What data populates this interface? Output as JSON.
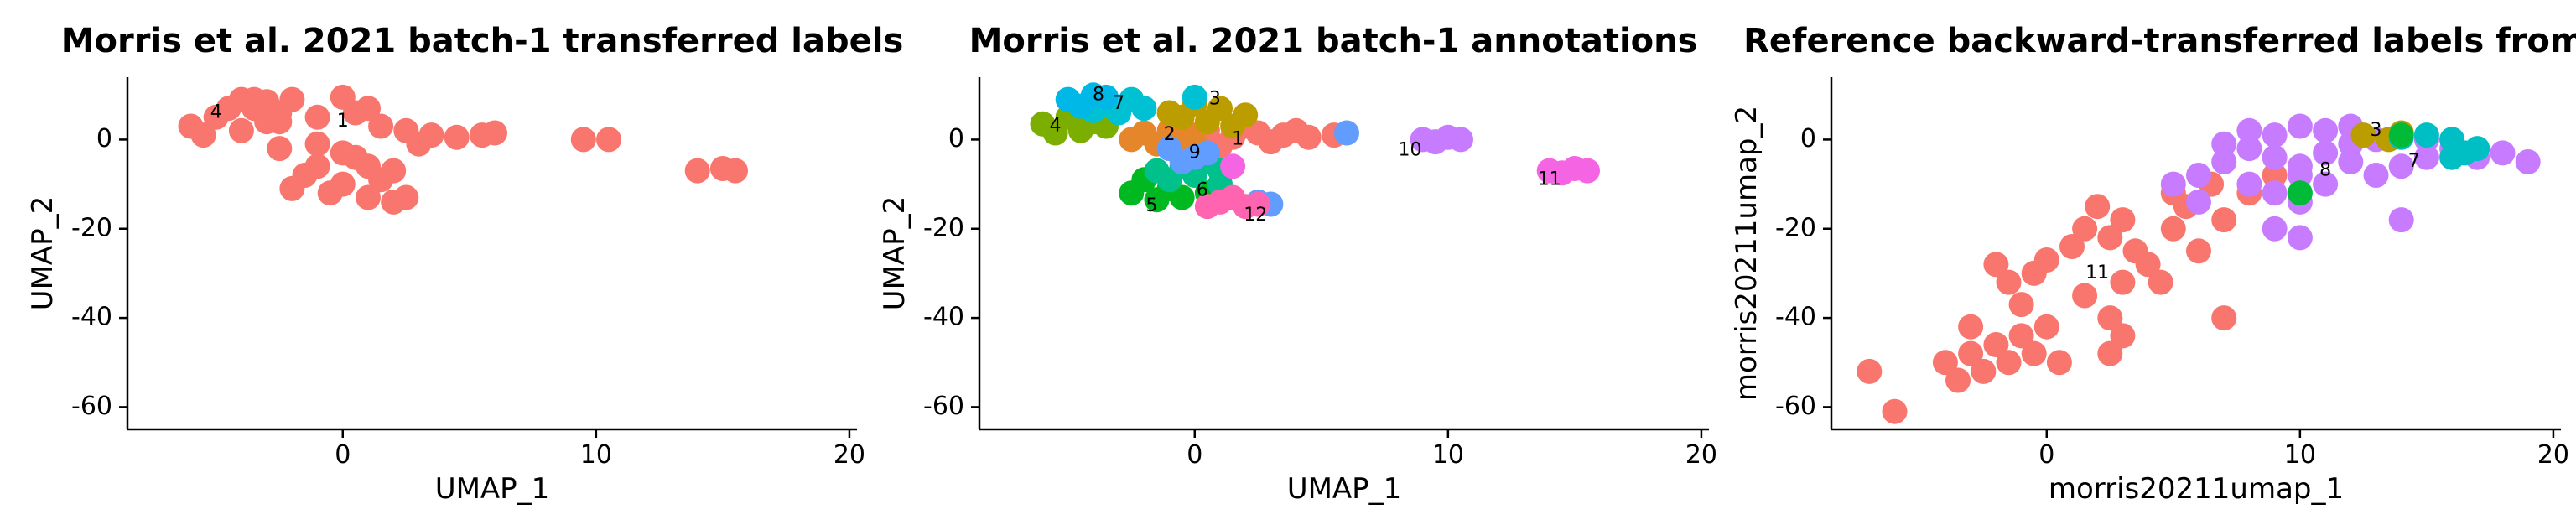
{
  "figure": {
    "background": "#ffffff"
  },
  "chart_data": [
    {
      "type": "scatter",
      "title": "Morris et al. 2021 batch-1 transferred labels",
      "xlabel": "UMAP_1",
      "ylabel": "UMAP_2",
      "xlim": [
        -8.5,
        20.3
      ],
      "ylim": [
        -65,
        14
      ],
      "xticks": [
        0,
        10,
        20
      ],
      "yticks": [
        0,
        -20,
        -40,
        -60
      ],
      "grid": false,
      "legend": "none",
      "clusters": [
        {
          "label": "1",
          "color": "#F8766D",
          "label_pos": [
            0,
            4
          ],
          "points": [
            [
              -2.5,
              4
            ],
            [
              -1,
              5
            ],
            [
              0.5,
              6
            ],
            [
              1.5,
              3
            ],
            [
              2.5,
              2
            ],
            [
              3.5,
              1
            ],
            [
              4.5,
              0.5
            ],
            [
              5.5,
              1
            ],
            [
              6,
              1.5
            ],
            [
              -1,
              -1
            ],
            [
              0,
              -3
            ],
            [
              1,
              -6
            ],
            [
              -1.5,
              -8
            ],
            [
              -2,
              -11
            ],
            [
              -0.5,
              -12
            ],
            [
              1,
              -13
            ],
            [
              2,
              -14
            ],
            [
              2.5,
              -13
            ],
            [
              0,
              -10
            ],
            [
              1.5,
              -9
            ],
            [
              9.5,
              0
            ],
            [
              10.5,
              0
            ],
            [
              14,
              -7
            ],
            [
              15,
              -6.5
            ],
            [
              15.5,
              -7
            ],
            [
              -3.5,
              7
            ],
            [
              -2,
              9
            ],
            [
              0,
              9.5
            ],
            [
              1,
              7
            ],
            [
              0.5,
              -4
            ],
            [
              -1,
              -6
            ],
            [
              2,
              -7
            ],
            [
              -2.5,
              -2
            ],
            [
              3,
              -1
            ]
          ]
        },
        {
          "label": "4",
          "color": "#F8766D",
          "label_pos": [
            -5,
            6
          ],
          "points": [
            [
              -6,
              3
            ],
            [
              -5,
              5
            ],
            [
              -4.5,
              7
            ],
            [
              -3.5,
              9
            ],
            [
              -5.5,
              1
            ],
            [
              -4,
              2
            ],
            [
              -3,
              4
            ],
            [
              -2.5,
              6
            ],
            [
              -4,
              9
            ],
            [
              -3,
              8.5
            ]
          ]
        }
      ]
    },
    {
      "type": "scatter",
      "title": "Morris et al. 2021 batch-1 annotations",
      "xlabel": "UMAP_1",
      "ylabel": "UMAP_2",
      "xlim": [
        -8.5,
        20.3
      ],
      "ylim": [
        -65,
        14
      ],
      "xticks": [
        0,
        10,
        20
      ],
      "yticks": [
        0,
        -20,
        -40,
        -60
      ],
      "grid": false,
      "legend": "none",
      "clusters": [
        {
          "label": "1",
          "color": "#F8766D",
          "label_pos": [
            1.7,
            0
          ],
          "points": [
            [
              0.5,
              2
            ],
            [
              1.5,
              0.5
            ],
            [
              2.5,
              1.5
            ],
            [
              3.5,
              1
            ],
            [
              4.5,
              0.5
            ],
            [
              5.5,
              1
            ],
            [
              2,
              3
            ],
            [
              3,
              -0.5
            ],
            [
              1,
              -1.5
            ],
            [
              4,
              2
            ]
          ]
        },
        {
          "label": "2",
          "color": "#E6862B",
          "label_pos": [
            -1,
            1
          ],
          "points": [
            [
              -2,
              1.5
            ],
            [
              -1,
              2
            ],
            [
              -0.5,
              0.5
            ],
            [
              -1.5,
              -1
            ],
            [
              0,
              1
            ],
            [
              -2.5,
              0
            ]
          ]
        },
        {
          "label": "3",
          "color": "#BB9D00",
          "label_pos": [
            0.8,
            9
          ],
          "points": [
            [
              0,
              8
            ],
            [
              1,
              7
            ],
            [
              2,
              5.5
            ],
            [
              -0.5,
              5
            ],
            [
              0.5,
              4
            ],
            [
              1.5,
              3
            ],
            [
              -1,
              6
            ]
          ]
        },
        {
          "label": "4",
          "color": "#7CAE00",
          "label_pos": [
            -5.5,
            3
          ],
          "points": [
            [
              -6,
              3.5
            ],
            [
              -5,
              5
            ],
            [
              -4.5,
              2
            ],
            [
              -4,
              4
            ],
            [
              -5.5,
              1.5
            ],
            [
              -3.5,
              3
            ]
          ]
        },
        {
          "label": "5",
          "color": "#00B81F",
          "label_pos": [
            -1.7,
            -15
          ],
          "points": [
            [
              -2.5,
              -12
            ],
            [
              -1.5,
              -13.5
            ],
            [
              -0.5,
              -13
            ],
            [
              0.5,
              -12
            ],
            [
              1,
              -11
            ],
            [
              -1,
              -11
            ],
            [
              -2,
              -9
            ]
          ]
        },
        {
          "label": "6",
          "color": "#00C08B",
          "label_pos": [
            0.3,
            -11.5
          ],
          "points": [
            [
              -1,
              -9
            ],
            [
              0,
              -8
            ],
            [
              1,
              -10
            ],
            [
              -0.5,
              -6
            ],
            [
              0.5,
              -5
            ],
            [
              1,
              -7
            ],
            [
              -1.5,
              -7
            ]
          ]
        },
        {
          "label": "7",
          "color": "#00C1D4",
          "label_pos": [
            -3,
            8
          ],
          "points": [
            [
              -3.5,
              8
            ],
            [
              -2.5,
              9
            ],
            [
              -3,
              6
            ],
            [
              -2,
              7
            ],
            [
              -4,
              6.5
            ],
            [
              0,
              9.5
            ]
          ]
        },
        {
          "label": "8",
          "color": "#00B8E7",
          "label_pos": [
            -3.8,
            10
          ],
          "points": [
            [
              -5,
              9
            ],
            [
              -4,
              10
            ],
            [
              -4.5,
              7.5
            ],
            [
              -3.5,
              9.5
            ]
          ]
        },
        {
          "label": "9",
          "color": "#619CFF",
          "label_pos": [
            0,
            -3
          ],
          "points": [
            [
              -1,
              -2
            ],
            [
              0,
              -4
            ],
            [
              0.5,
              -3
            ],
            [
              -0.5,
              -5
            ],
            [
              2.5,
              -14
            ],
            [
              3,
              -14.5
            ],
            [
              6,
              1.5
            ]
          ]
        },
        {
          "label": "10",
          "color": "#C77CFF",
          "label_pos": [
            8.5,
            -2.5
          ],
          "points": [
            [
              9,
              0
            ],
            [
              10,
              0.5
            ],
            [
              10.5,
              0
            ],
            [
              9.5,
              -0.5
            ]
          ]
        },
        {
          "label": "11",
          "color": "#F564E3",
          "label_pos": [
            14,
            -9
          ],
          "points": [
            [
              14,
              -7
            ],
            [
              15,
              -6.5
            ],
            [
              15.5,
              -7
            ],
            [
              14.5,
              -7.5
            ],
            [
              1.5,
              -6
            ]
          ]
        },
        {
          "label": "12",
          "color": "#FF64B0",
          "label_pos": [
            2.4,
            -17
          ],
          "points": [
            [
              1,
              -14
            ],
            [
              2,
              -15
            ],
            [
              1.5,
              -13
            ],
            [
              0.5,
              -15
            ],
            [
              2.5,
              -14.5
            ]
          ]
        }
      ]
    },
    {
      "type": "scatter",
      "title": "Reference backward-transferred labels from Morris et",
      "xlabel": "morris20211umap_1",
      "ylabel": "morris20211umap_2",
      "xlim": [
        -8.5,
        20.3
      ],
      "ylim": [
        -65,
        14
      ],
      "xticks": [
        0,
        10,
        20
      ],
      "yticks": [
        0,
        -20,
        -40,
        -60
      ],
      "grid": false,
      "legend": "none",
      "clusters": [
        {
          "label": "11",
          "color": "#F8766D",
          "label_pos": [
            2,
            -30
          ],
          "points": [
            [
              -7,
              -52
            ],
            [
              -6,
              -61
            ],
            [
              -4,
              -50
            ],
            [
              -3.5,
              -54
            ],
            [
              -3,
              -48
            ],
            [
              -2.5,
              -52
            ],
            [
              -2,
              -46
            ],
            [
              -1.5,
              -50
            ],
            [
              -1,
              -44
            ],
            [
              -0.5,
              -48
            ],
            [
              0,
              -42
            ],
            [
              0.5,
              -50
            ],
            [
              -1,
              -37
            ],
            [
              -1.5,
              -32
            ],
            [
              -0.5,
              -30
            ],
            [
              0,
              -27
            ],
            [
              -2,
              -28
            ],
            [
              1.5,
              -20
            ],
            [
              2,
              -15
            ],
            [
              2.5,
              -22
            ],
            [
              3,
              -18
            ],
            [
              3.5,
              -25
            ],
            [
              4,
              -28
            ],
            [
              5,
              -20
            ],
            [
              5.5,
              -15
            ],
            [
              6.5,
              -10
            ],
            [
              6,
              -25
            ],
            [
              7,
              -18
            ],
            [
              8,
              -12
            ],
            [
              9,
              -8
            ],
            [
              2.5,
              -40
            ],
            [
              2.5,
              -48
            ],
            [
              3,
              -44
            ],
            [
              7,
              -40
            ],
            [
              1.5,
              -35
            ],
            [
              -3,
              -42
            ],
            [
              4.5,
              -32
            ],
            [
              3,
              -32
            ],
            [
              1,
              -24
            ],
            [
              5,
              -12
            ]
          ]
        },
        {
          "label": "8",
          "color": "#C77CFF",
          "label_pos": [
            11,
            -7
          ],
          "points": [
            [
              6,
              -8
            ],
            [
              7,
              -5
            ],
            [
              8,
              -2
            ],
            [
              9,
              -4
            ],
            [
              10,
              -6
            ],
            [
              11,
              -3
            ],
            [
              12,
              -1
            ],
            [
              13,
              0
            ],
            [
              14,
              1
            ],
            [
              15,
              0
            ],
            [
              16,
              -2
            ],
            [
              17,
              -4
            ],
            [
              18,
              -3
            ],
            [
              19,
              -5
            ],
            [
              8,
              -10
            ],
            [
              9,
              -12
            ],
            [
              10,
              -8
            ],
            [
              12,
              -5
            ],
            [
              13,
              -8
            ],
            [
              14,
              -6
            ],
            [
              11,
              -10
            ],
            [
              10,
              -14
            ],
            [
              9,
              -20
            ],
            [
              10,
              -22
            ],
            [
              14,
              -18
            ],
            [
              7,
              -1
            ],
            [
              8,
              2
            ],
            [
              9,
              1
            ],
            [
              10,
              3
            ],
            [
              11,
              2
            ],
            [
              12,
              3
            ],
            [
              5,
              -10
            ],
            [
              6,
              -14
            ],
            [
              15,
              -4
            ],
            [
              16,
              0
            ]
          ]
        },
        {
          "label": "3",
          "color": "#BB9D00",
          "label_pos": [
            13,
            2
          ],
          "points": [
            [
              12.5,
              1
            ],
            [
              13.5,
              0
            ],
            [
              14,
              1.5
            ]
          ]
        },
        {
          "label": "7",
          "color": "#00BFC4",
          "label_pos": [
            14.5,
            -5
          ],
          "points": [
            [
              15,
              1
            ],
            [
              16,
              0
            ],
            [
              16.5,
              -3
            ],
            [
              17,
              -2
            ],
            [
              16,
              -4
            ],
            [
              14,
              0.5
            ]
          ]
        },
        {
          "label": "",
          "color": "#00BA38",
          "label_pos": null,
          "points": [
            [
              10,
              -12
            ],
            [
              14,
              1
            ]
          ]
        }
      ]
    }
  ]
}
